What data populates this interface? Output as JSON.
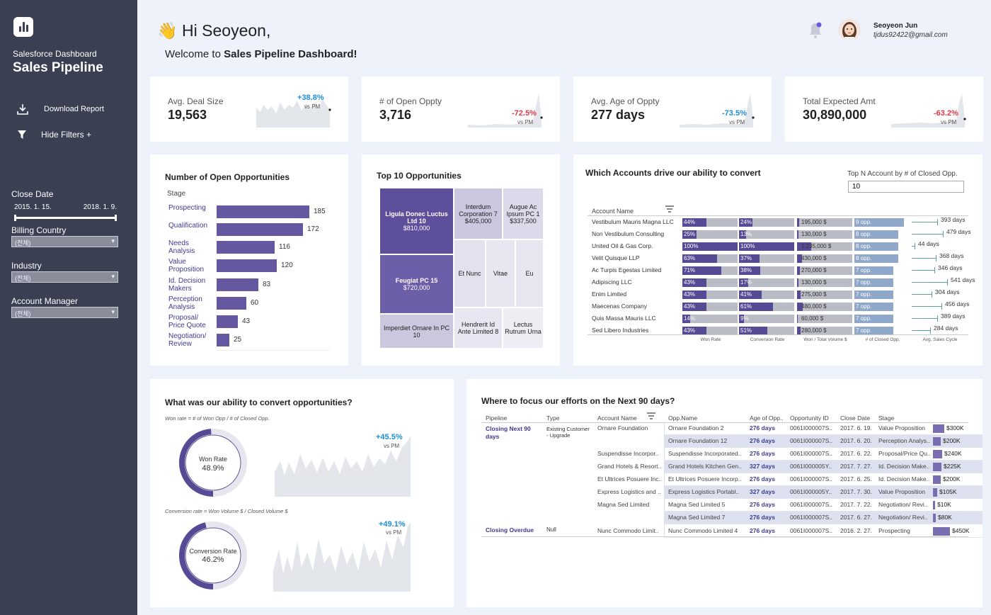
{
  "sidebar": {
    "app_sub": "Salesforce Dashboard",
    "app_title": "Sales Pipeline",
    "download_label": "Download Report",
    "filters_label": "Hide Filters +",
    "close_date_label": "Close Date",
    "close_date_start": "2015. 1. 15.",
    "close_date_end": "2018. 1. 9.",
    "billing_country_label": "Billing Country",
    "billing_country_value": "(전체)",
    "industry_label": "Industry",
    "industry_value": "(전체)",
    "account_manager_label": "Account Manager",
    "account_manager_value": "(전체)"
  },
  "header": {
    "greeting": "Hi Seoyeon,",
    "welcome_prefix": "Welcome to ",
    "welcome_bold": "Sales Pipeline Dashboard!",
    "user_name": "Seoyeon Jun",
    "user_email": "tjdus92422@gmail.com"
  },
  "kpis": [
    {
      "label": "Avg. Deal Size",
      "value": "19,563",
      "delta": "+38.8%",
      "vs": "vs PM",
      "color": "#1f8ed6"
    },
    {
      "label": "# of Open Oppty",
      "value": "3,716",
      "delta": "-72.5%",
      "vs": "vs PM",
      "color": "#e0394a"
    },
    {
      "label": "Avg. Age of Oppty",
      "value": "277 days",
      "delta": "-73.5%",
      "vs": "vs PM",
      "color": "#1f8ed6"
    },
    {
      "label": "Total Expected Amt",
      "value": "30,890,000",
      "delta": "-63.2%",
      "vs": "vs PM",
      "color": "#e0394a"
    }
  ],
  "open_opps": {
    "title": "Number of Open Opportunities",
    "stage_header": "Stage",
    "stages": [
      {
        "label": "Prospecting",
        "value": 185
      },
      {
        "label": "Qualification",
        "value": 172
      },
      {
        "label": "Needs Analysis",
        "value": 116
      },
      {
        "label": "Value Proposition",
        "value": 120
      },
      {
        "label": "Id. Decision Makers",
        "value": 83
      },
      {
        "label": "Perception Analysis",
        "value": 60
      },
      {
        "label": "Proposal/ Price Quote",
        "value": 43
      },
      {
        "label": "Negotiation/ Review",
        "value": 25
      }
    ]
  },
  "top10": {
    "title": "Top 10 Opportunities",
    "tiles": [
      {
        "name": "Ligula Donec Luctus Ltd 10",
        "amount": "$810,000"
      },
      {
        "name": "Feugiat PC 15",
        "amount": "$720,000"
      },
      {
        "name": "Imperdiet Ornare In PC 10",
        "amount": ""
      },
      {
        "name": "Interdum Corporation 7",
        "amount": "$405,000"
      },
      {
        "name": "Augue Ac Ipsum PC 1",
        "amount": "$337,500"
      },
      {
        "name": "Et Nunc",
        "amount": ""
      },
      {
        "name": "Vitae",
        "amount": ""
      },
      {
        "name": "Eu",
        "amount": ""
      },
      {
        "name": "Hendrerit Id Ante Limited 8",
        "amount": ""
      },
      {
        "name": "Lectus Rutrum Urna",
        "amount": ""
      }
    ]
  },
  "accounts": {
    "title": "Which Accounts drive our ability to convert",
    "topn_label": "Top N Account by # of Closed Opp.",
    "topn_value": "10",
    "account_header": "Account Name",
    "col_labels": [
      "Won Rate",
      "Conversion Rate",
      "Won / Total Volume $",
      "# of Closed Opp.",
      "Avg. Sales Cycle"
    ],
    "rows": [
      {
        "name": "Vestibulum Mauris Magna LLC",
        "won": "44%",
        "conv": "24%",
        "vol": "195,000 $",
        "closed": "9 opp.",
        "cycle": "393 days"
      },
      {
        "name": "Non Vestibulum Consulting",
        "won": "25%",
        "conv": "13%",
        "vol": "130,000 $",
        "closed": "8 opp.",
        "cycle": "479 days"
      },
      {
        "name": "United Oil & Gas Corp.",
        "won": "100%",
        "conv": "100%",
        "vol": "1,235,000 $",
        "closed": "8 opp.",
        "cycle": "44 days"
      },
      {
        "name": "Velit Quisque LLP",
        "won": "63%",
        "conv": "37%",
        "vol": "430,000 $",
        "closed": "8 opp.",
        "cycle": "368 days"
      },
      {
        "name": "Ac Turpis Egestas Limited",
        "won": "71%",
        "conv": "38%",
        "vol": "270,000 $",
        "closed": "7 opp.",
        "cycle": "346 days"
      },
      {
        "name": "Adipiscing LLC",
        "won": "43%",
        "conv": "17%",
        "vol": "130,000 $",
        "closed": "7 opp.",
        "cycle": "541 days"
      },
      {
        "name": "Enim Limited",
        "won": "43%",
        "conv": "41%",
        "vol": "275,000 $",
        "closed": "7 opp.",
        "cycle": "304 days"
      },
      {
        "name": "Maecenas Company",
        "won": "43%",
        "conv": "61%",
        "vol": "480,000 $",
        "closed": "7 opp.",
        "cycle": "456 days"
      },
      {
        "name": "Quis Massa Mauris LLC",
        "won": "14%",
        "conv": "9%",
        "vol": "60,000 $",
        "closed": "7 opp.",
        "cycle": "389 days"
      },
      {
        "name": "Sed Libero Industries",
        "won": "43%",
        "conv": "51%",
        "vol": "280,000 $",
        "closed": "7 opp.",
        "cycle": "284 days"
      }
    ]
  },
  "convert": {
    "title": "What was our ability to convert opportunities?",
    "won_note": "Won rate = # of Won Opp / # of Closed Opp.",
    "won_label": "Won Rate",
    "won_value": "48.9%",
    "won_delta": "+45.5%",
    "conv_note": "Conversion rate = Won Volume $ / Closed Volume $",
    "conv_label": "Conversion Rate",
    "conv_value": "46.2%",
    "conv_delta": "+49.1%",
    "vs": "vs PM"
  },
  "focus": {
    "title": "Where to focus our efforts on the Next 90 days?",
    "headers": [
      "Pipeline",
      "Type",
      "Account Name",
      "Opp.Name",
      "Age of Opp..",
      "Opportunity ID",
      "Close Date",
      "Stage"
    ],
    "pipeline_1": "Closing Next 90 days",
    "type_1": "Existing Customer - Upgrade",
    "pipeline_2": "Closing Overdue",
    "type_2": "Null",
    "rows": [
      {
        "account": "Ornare Foundation",
        "opp": "Ornare Foundation 2",
        "age": "276 days",
        "id": "0061I000007S..",
        "date": "2017. 6. 19.",
        "stage": "Value Proposition",
        "amt": "$300K"
      },
      {
        "account": "",
        "opp": "Ornare Foundation 12",
        "age": "276 days",
        "id": "0061I000007S..",
        "date": "2017. 6. 20.",
        "stage": "Perception Analys..",
        "amt": "$200K"
      },
      {
        "account": "Suspendisse Incorpor..",
        "opp": "Suspendisse Incorporated..",
        "age": "276 days",
        "id": "0061I000007S..",
        "date": "2017. 6. 22.",
        "stage": "Proposal/Price Qu..",
        "amt": "$240K"
      },
      {
        "account": "Grand Hotels & Resort..",
        "opp": "Grand Hotels Kitchen Gen..",
        "age": "327 days",
        "id": "0061I000005Y..",
        "date": "2017. 7. 27.",
        "stage": "Id. Decision Make..",
        "amt": "$225K"
      },
      {
        "account": "Et Ultrices Posuere Inc..",
        "opp": "Et Ultrices Posuere Incorp..",
        "age": "276 days",
        "id": "0061I000007S..",
        "date": "2017. 6. 25.",
        "stage": "Id. Decision Make..",
        "amt": "$200K"
      },
      {
        "account": "Express Logistics and ..",
        "opp": "Express Logistics Portabl..",
        "age": "327 days",
        "id": "0061I000005Y..",
        "date": "2017. 7. 30.",
        "stage": "Value Proposition",
        "amt": "$105K"
      },
      {
        "account": "Magna Sed Limited",
        "opp": "Magna Sed Limited 5",
        "age": "276 days",
        "id": "0061I000007S..",
        "date": "2017. 7. 22.",
        "stage": "Negotiation/ Revi..",
        "amt": "$10K"
      },
      {
        "account": "",
        "opp": "Magna Sed Limited 7",
        "age": "276 days",
        "id": "0061I000007S..",
        "date": "2017. 6. 27.",
        "stage": "Negotiation/ Revi..",
        "amt": "$80K"
      },
      {
        "account": "Nunc Commodo Limit..",
        "opp": "Nunc Commodo Limited 4",
        "age": "276 days",
        "id": "0061I000007S..",
        "date": "2016. 2. 27.",
        "stage": "Prospecting",
        "amt": "$450K"
      }
    ]
  },
  "colors": {
    "accent": "#6557a0",
    "bar_light": "#8fa7c8",
    "sidebar": "#3a3f52"
  }
}
